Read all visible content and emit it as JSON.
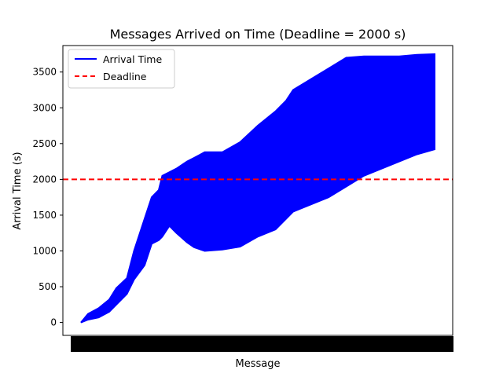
{
  "chart_data": {
    "type": "area",
    "title": "Messages Arrived on Time (Deadline = 2000 s)",
    "xlabel": "Message",
    "ylabel": "Arrival Time (s)",
    "ylim": [
      -180,
      3870
    ],
    "yticks": [
      0,
      500,
      1000,
      1500,
      2000,
      2500,
      3000,
      3500
    ],
    "grid": false,
    "legend_position": "top-left",
    "series": [
      {
        "name": "Arrival Time",
        "color": "#0000ff",
        "line_style": "solid",
        "x": [
          0,
          2,
          5,
          8,
          10,
          13,
          15,
          18,
          20,
          22,
          23,
          25,
          27,
          30,
          32,
          35,
          40,
          45,
          50,
          55,
          58,
          60,
          65,
          70,
          75,
          80,
          85,
          90,
          95,
          100
        ],
        "low": [
          0,
          40,
          70,
          150,
          250,
          400,
          600,
          800,
          1100,
          1150,
          1200,
          1350,
          1250,
          1120,
          1050,
          1000,
          1020,
          1060,
          1200,
          1300,
          1450,
          1550,
          1650,
          1750,
          1900,
          2050,
          2150,
          2250,
          2350,
          2420
        ],
        "high": [
          0,
          120,
          200,
          320,
          480,
          620,
          1000,
          1450,
          1750,
          1850,
          2050,
          2100,
          2150,
          2250,
          2300,
          2380,
          2380,
          2520,
          2750,
          2950,
          3100,
          3250,
          3400,
          3550,
          3700,
          3720,
          3720,
          3720,
          3740,
          3750
        ]
      },
      {
        "name": "Deadline",
        "color": "#ff0000",
        "line_style": "dashed",
        "y": 2000
      }
    ]
  }
}
